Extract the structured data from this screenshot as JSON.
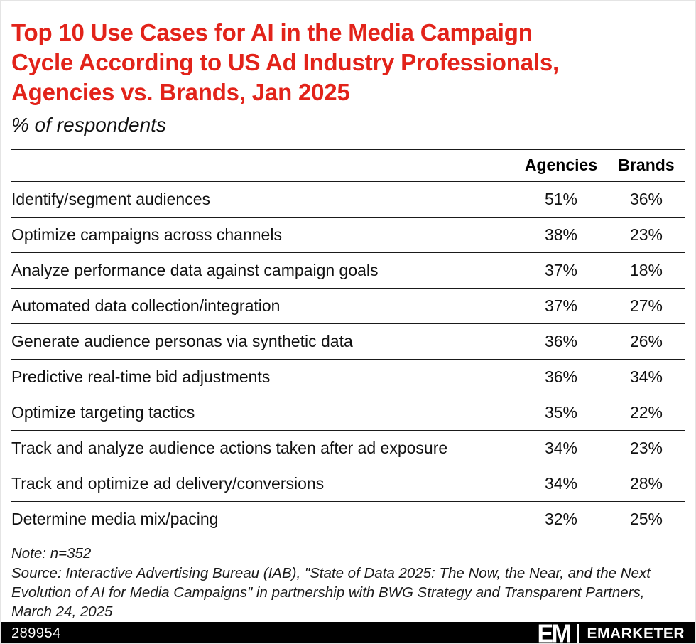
{
  "colors": {
    "title_red": "#e2231a",
    "rule": "#1a1a1a",
    "footer_bg": "#000000",
    "footer_text": "#ffffff"
  },
  "header": {
    "title_lines": [
      "Top 10 Use Cases for AI in the Media Campaign",
      "Cycle According to US Ad Industry Professionals,",
      "Agencies vs. Brands, Jan 2025"
    ],
    "subtitle": "% of respondents"
  },
  "chart_data": {
    "type": "table",
    "title": "Top 10 Use Cases for AI in the Media Campaign Cycle According to US Ad Industry Professionals, Agencies vs. Brands, Jan 2025",
    "subtitle": "% of respondents",
    "columns": [
      "Agencies",
      "Brands"
    ],
    "categories": [
      "Identify/segment audiences",
      "Optimize campaigns across channels",
      "Analyze performance data against campaign goals",
      "Automated data collection/integration",
      "Generate audience personas via synthetic data",
      "Predictive real-time bid adjustments",
      "Optimize targeting tactics",
      "Track and analyze audience actions taken after ad exposure",
      "Track and optimize ad delivery/conversions",
      "Determine media mix/pacing"
    ],
    "series": [
      {
        "name": "Agencies",
        "values": [
          51,
          38,
          37,
          37,
          36,
          36,
          35,
          34,
          34,
          32
        ]
      },
      {
        "name": "Brands",
        "values": [
          36,
          23,
          18,
          27,
          26,
          34,
          22,
          23,
          28,
          25
        ]
      }
    ],
    "unit": "%",
    "rows": [
      {
        "label": "Identify/segment audiences",
        "agencies": "51%",
        "brands": "36%"
      },
      {
        "label": "Optimize campaigns across channels",
        "agencies": "38%",
        "brands": "23%"
      },
      {
        "label": "Analyze performance data against campaign goals",
        "agencies": "37%",
        "brands": "18%"
      },
      {
        "label": "Automated data collection/integration",
        "agencies": "37%",
        "brands": "27%"
      },
      {
        "label": "Generate audience personas via synthetic data",
        "agencies": "36%",
        "brands": "26%"
      },
      {
        "label": "Predictive real-time bid adjustments",
        "agencies": "36%",
        "brands": "34%"
      },
      {
        "label": "Optimize targeting tactics",
        "agencies": "35%",
        "brands": "22%"
      },
      {
        "label": "Track and analyze audience actions taken after ad exposure",
        "agencies": "34%",
        "brands": "23%"
      },
      {
        "label": "Track and optimize ad delivery/conversions",
        "agencies": "34%",
        "brands": "28%"
      },
      {
        "label": "Determine media mix/pacing",
        "agencies": "32%",
        "brands": "25%"
      }
    ]
  },
  "notes": {
    "note": "Note: n=352",
    "source": "Source: Interactive Advertising Bureau (IAB), \"State of Data 2025: The Now, the Near, and the Next Evolution of AI for Media Campaigns\" in partnership with BWG Strategy and Transparent Partners, March 24, 2025"
  },
  "footer": {
    "chart_id": "289954",
    "logo_mark": "EM",
    "brand_name": "EMARKETER"
  }
}
